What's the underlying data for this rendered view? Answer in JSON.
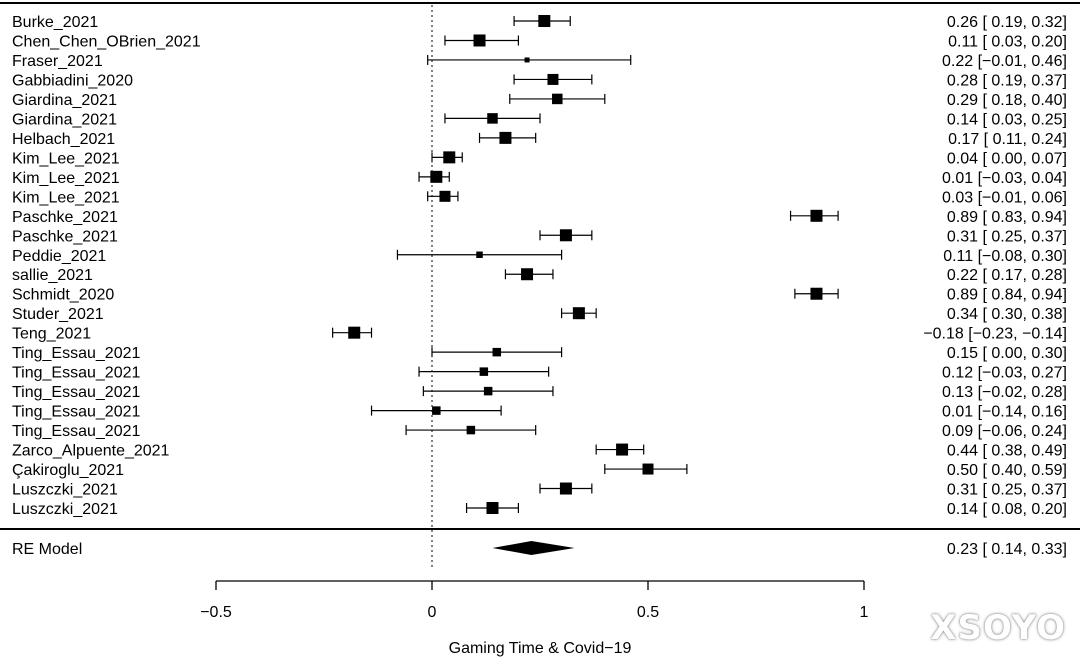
{
  "chart_data": {
    "type": "forest",
    "xlabel": "Gaming Time & Covid−19",
    "xlim": [
      -0.5,
      1
    ],
    "xticks": [
      -0.5,
      0,
      0.5,
      1
    ],
    "xtick_labels": [
      "−0.5",
      "0",
      "0.5",
      "1"
    ],
    "reference_line": 0,
    "studies": [
      {
        "label": "Burke_2021",
        "est": 0.26,
        "lo": 0.19,
        "hi": 0.32,
        "text": "0.26 [ 0.19,  0.32]",
        "weight": 1.0
      },
      {
        "label": "Chen_Chen_OBrien_2021",
        "est": 0.11,
        "lo": 0.03,
        "hi": 0.2,
        "text": "0.11 [ 0.03,  0.20]",
        "weight": 1.0
      },
      {
        "label": "Fraser_2021",
        "est": 0.22,
        "lo": -0.01,
        "hi": 0.46,
        "text": "0.22 [−0.01,  0.46]",
        "weight": 0.3
      },
      {
        "label": "Gabbiadini_2020",
        "est": 0.28,
        "lo": 0.19,
        "hi": 0.37,
        "text": "0.28 [ 0.19,  0.37]",
        "weight": 0.9
      },
      {
        "label": "Giardina_2021",
        "est": 0.29,
        "lo": 0.18,
        "hi": 0.4,
        "text": "0.29 [ 0.18,  0.40]",
        "weight": 0.85
      },
      {
        "label": "Giardina_2021",
        "est": 0.14,
        "lo": 0.03,
        "hi": 0.25,
        "text": "0.14 [ 0.03,  0.25]",
        "weight": 0.85
      },
      {
        "label": "Helbach_2021",
        "est": 0.17,
        "lo": 0.11,
        "hi": 0.24,
        "text": "0.17 [ 0.11,  0.24]",
        "weight": 1.0
      },
      {
        "label": "Kim_Lee_2021",
        "est": 0.04,
        "lo": 0.0,
        "hi": 0.07,
        "text": "0.04 [ 0.00,  0.07]",
        "weight": 1.0
      },
      {
        "label": "Kim_Lee_2021",
        "est": 0.01,
        "lo": -0.03,
        "hi": 0.04,
        "text": "0.01 [−0.03,  0.04]",
        "weight": 1.0
      },
      {
        "label": "Kim_Lee_2021",
        "est": 0.03,
        "lo": -0.01,
        "hi": 0.06,
        "text": "0.03 [−0.01,  0.06]",
        "weight": 0.9
      },
      {
        "label": "Paschke_2021",
        "est": 0.89,
        "lo": 0.83,
        "hi": 0.94,
        "text": "0.89 [ 0.83,  0.94]",
        "weight": 1.0
      },
      {
        "label": "Paschke_2021",
        "est": 0.31,
        "lo": 0.25,
        "hi": 0.37,
        "text": "0.31 [ 0.25,  0.37]",
        "weight": 1.0
      },
      {
        "label": "Peddie_2021",
        "est": 0.11,
        "lo": -0.08,
        "hi": 0.3,
        "text": "0.11 [−0.08,  0.30]",
        "weight": 0.45
      },
      {
        "label": "sallie_2021",
        "est": 0.22,
        "lo": 0.17,
        "hi": 0.28,
        "text": "0.22 [ 0.17,  0.28]",
        "weight": 1.0
      },
      {
        "label": "Schmidt_2020",
        "est": 0.89,
        "lo": 0.84,
        "hi": 0.94,
        "text": "0.89 [ 0.84,  0.94]",
        "weight": 1.0
      },
      {
        "label": "Studer_2021",
        "est": 0.34,
        "lo": 0.3,
        "hi": 0.38,
        "text": "0.34 [ 0.30,  0.38]",
        "weight": 1.0
      },
      {
        "label": "Teng_2021",
        "est": -0.18,
        "lo": -0.23,
        "hi": -0.14,
        "text": "−0.18 [−0.23, −0.14]",
        "weight": 1.0
      },
      {
        "label": "Ting_Essau_2021",
        "est": 0.15,
        "lo": 0.0,
        "hi": 0.3,
        "text": "0.15 [ 0.00,  0.30]",
        "weight": 0.65
      },
      {
        "label": "Ting_Essau_2021",
        "est": 0.12,
        "lo": -0.03,
        "hi": 0.27,
        "text": "0.12 [−0.03,  0.27]",
        "weight": 0.65
      },
      {
        "label": "Ting_Essau_2021",
        "est": 0.13,
        "lo": -0.02,
        "hi": 0.28,
        "text": "0.13 [−0.02,  0.28]",
        "weight": 0.65
      },
      {
        "label": "Ting_Essau_2021",
        "est": 0.01,
        "lo": -0.14,
        "hi": 0.16,
        "text": "0.01 [−0.14,  0.16]",
        "weight": 0.65
      },
      {
        "label": "Ting_Essau_2021",
        "est": 0.09,
        "lo": -0.06,
        "hi": 0.24,
        "text": "0.09 [−0.06,  0.24]",
        "weight": 0.65
      },
      {
        "label": "Zarco_Alpuente_2021",
        "est": 0.44,
        "lo": 0.38,
        "hi": 0.49,
        "text": "0.44 [ 0.38,  0.49]",
        "weight": 1.0
      },
      {
        "label": "Çakiroglu_2021",
        "est": 0.5,
        "lo": 0.4,
        "hi": 0.59,
        "text": "0.50 [ 0.40,  0.59]",
        "weight": 0.9
      },
      {
        "label": "Luszczki_2021",
        "est": 0.31,
        "lo": 0.25,
        "hi": 0.37,
        "text": "0.31 [ 0.25,  0.37]",
        "weight": 1.0
      },
      {
        "label": "Luszczki_2021",
        "est": 0.14,
        "lo": 0.08,
        "hi": 0.2,
        "text": "0.14 [ 0.08,  0.20]",
        "weight": 1.0
      }
    ],
    "summary": {
      "label": "RE Model",
      "est": 0.23,
      "lo": 0.14,
      "hi": 0.33,
      "text": "0.23 [ 0.14,  0.33]"
    }
  },
  "watermark": "XSOYO"
}
